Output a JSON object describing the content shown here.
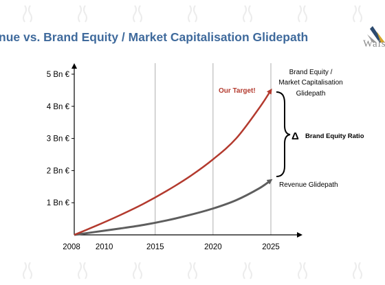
{
  "title": "nue vs. Brand Equity / Market Capitalisation Glidepath",
  "logo": {
    "text": "Wals",
    "icon": "chevron-logo-icon",
    "colors": [
      "#2c4a6e",
      "#d4a52a",
      "#9a9a9a"
    ]
  },
  "colors": {
    "brand": "#b33a2e",
    "revenue": "#5e5e5e",
    "axis": "#000000",
    "grid": "#999999"
  },
  "chart_data": {
    "type": "line",
    "title": "nue vs. Brand Equity / Market Capitalisation Glidepath",
    "xlabel": "",
    "ylabel": "",
    "xlim": [
      2008,
      2025
    ],
    "ylim": [
      0,
      5
    ],
    "x_ticks": [
      2008,
      2010,
      2015,
      2020,
      2025
    ],
    "x_tick_labels": [
      "2008",
      "2010",
      "2015",
      "2020",
      "2025"
    ],
    "y_ticks": [
      1,
      2,
      3,
      4,
      5
    ],
    "y_tick_labels": [
      "1 Bn €",
      "2 Bn €",
      "3 Bn €",
      "4 Bn €",
      "5 Bn €"
    ],
    "vertical_gridlines": [
      2015,
      2020,
      2025
    ],
    "series": [
      {
        "key": "brand",
        "x": [
          2008,
          2010,
          2012,
          2014,
          2016,
          2018,
          2020,
          2022,
          2024,
          2025
        ],
        "y": [
          0,
          0.3,
          0.62,
          0.97,
          1.37,
          1.82,
          2.35,
          3.0,
          3.95,
          4.5
        ]
      },
      {
        "key": "revenue",
        "x": [
          2008,
          2010,
          2012,
          2014,
          2016,
          2018,
          2020,
          2022,
          2024,
          2025
        ],
        "y": [
          0,
          0.1,
          0.2,
          0.31,
          0.45,
          0.62,
          0.82,
          1.08,
          1.45,
          1.7
        ]
      }
    ],
    "annotations": {
      "target": "Our Target!",
      "brand_label": [
        "Brand Equity /",
        "Market Capitalisation",
        "Glidepath"
      ],
      "revenue_label": "Revenue Glidepath",
      "delta_symbol": "Δ",
      "ratio_label": "Brand Equity Ratio"
    }
  }
}
